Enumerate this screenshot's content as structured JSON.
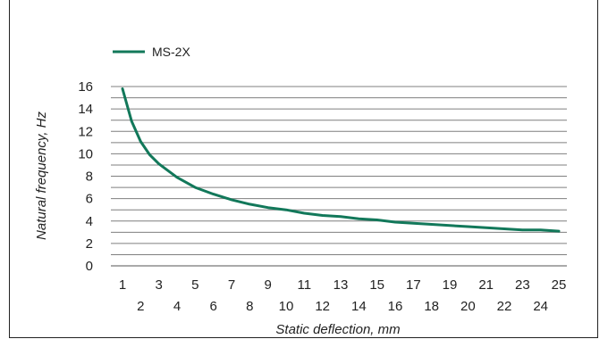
{
  "chart_data": {
    "type": "line",
    "xlabel": "Static deflection, mm",
    "ylabel": "Natural frequency, Hz",
    "xlim": [
      1,
      25
    ],
    "ylim": [
      0,
      16
    ],
    "grid": true,
    "legend": "top-left",
    "x_ticks": [
      "1",
      "2",
      "3",
      "4",
      "5",
      "6",
      "7",
      "8",
      "9",
      "10",
      "11",
      "12",
      "13",
      "14",
      "15",
      "16",
      "17",
      "18",
      "19",
      "20",
      "21",
      "22",
      "23",
      "24",
      "25"
    ],
    "y_ticks": [
      "0",
      "2",
      "4",
      "6",
      "8",
      "10",
      "12",
      "14",
      "16"
    ],
    "series": [
      {
        "name": "MS-2X",
        "color": "#12785a",
        "x": [
          1.0,
          1.5,
          2.0,
          2.5,
          3.0,
          4.0,
          5.0,
          6.0,
          7.0,
          8.0,
          9.0,
          10.0,
          11.0,
          12.0,
          13.0,
          14.0,
          15.0,
          16.0,
          17.0,
          18.0,
          19.0,
          20.0,
          21.0,
          22.0,
          23.0,
          24.0,
          25.0
        ],
        "y": [
          15.8,
          12.9,
          11.1,
          9.9,
          9.1,
          7.9,
          7.0,
          6.4,
          5.9,
          5.5,
          5.2,
          5.0,
          4.7,
          4.5,
          4.4,
          4.2,
          4.1,
          3.9,
          3.8,
          3.7,
          3.6,
          3.5,
          3.4,
          3.3,
          3.2,
          3.2,
          3.1
        ]
      }
    ]
  }
}
